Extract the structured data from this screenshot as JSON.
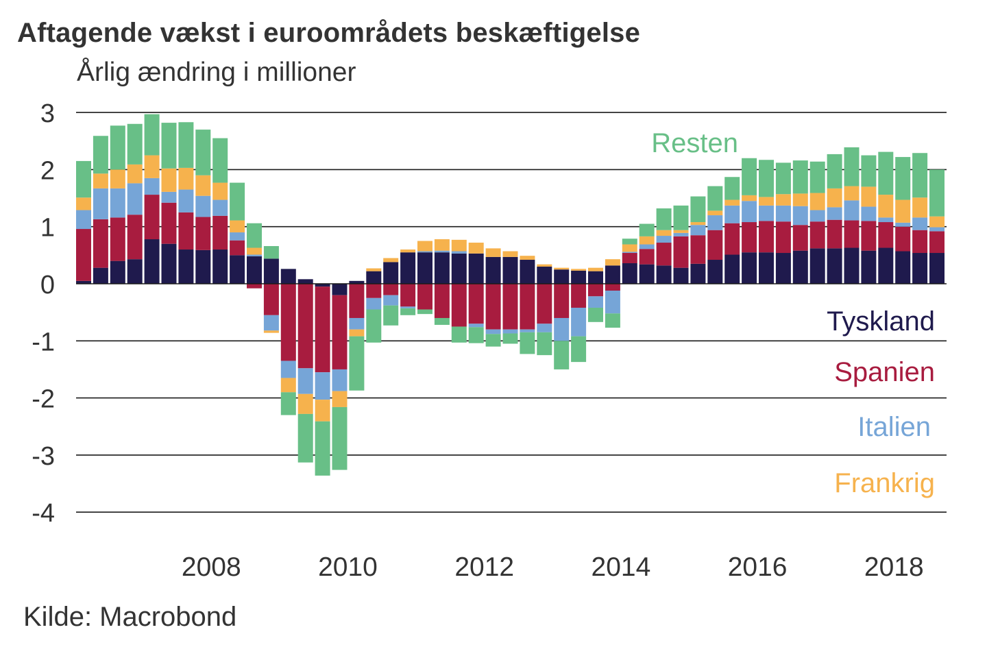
{
  "title": "Aftagende vækst i euroområdets beskæftigelse",
  "subtitle": "Årlig ændring i millioner",
  "source": "Kilde: Macrobond",
  "chart_data": {
    "type": "bar",
    "stacked": true,
    "title": "Aftagende vækst i euroområdets beskæftigelse",
    "ylabel": "Årlig ændring i millioner",
    "xlabel": "",
    "frequency": "quarterly",
    "ylim": [
      -4,
      3
    ],
    "yticks": [
      "3",
      "2",
      "1",
      "0",
      "-1",
      "-2",
      "-3",
      "-4"
    ],
    "ytick_values": [
      3,
      2,
      1,
      0,
      -1,
      -2,
      -3,
      -4
    ],
    "xticks": [
      "2008",
      "2010",
      "2012",
      "2014",
      "2016",
      "2018"
    ],
    "xtick_bar_index": [
      7.5,
      15.5,
      23.5,
      31.5,
      39.5,
      47.5
    ],
    "grid": true,
    "legend_placement": "right (inline labels)",
    "categories": [
      "2006Q2",
      "2006Q3",
      "2006Q4",
      "2007Q1",
      "2007Q2",
      "2007Q3",
      "2007Q4",
      "2008Q1",
      "2008Q2",
      "2008Q3",
      "2008Q4",
      "2009Q1",
      "2009Q2",
      "2009Q3",
      "2009Q4",
      "2010Q1",
      "2010Q2",
      "2010Q3",
      "2010Q4",
      "2011Q1",
      "2011Q2",
      "2011Q3",
      "2011Q4",
      "2012Q1",
      "2012Q2",
      "2012Q3",
      "2012Q4",
      "2013Q1",
      "2013Q2",
      "2013Q3",
      "2013Q4",
      "2014Q1",
      "2014Q2",
      "2014Q3",
      "2014Q4",
      "2015Q1",
      "2015Q2",
      "2015Q3",
      "2015Q4",
      "2016Q1",
      "2016Q2",
      "2016Q3",
      "2016Q4",
      "2017Q1",
      "2017Q2",
      "2017Q3",
      "2017Q4",
      "2018Q1",
      "2018Q2",
      "2018Q3",
      "2018Q4"
    ],
    "series": [
      {
        "name": "Tyskland",
        "color": "#1f1a4d",
        "values": [
          0.05,
          0.28,
          0.4,
          0.43,
          0.78,
          0.7,
          0.6,
          0.59,
          0.6,
          0.5,
          0.48,
          0.44,
          0.26,
          0.08,
          -0.05,
          -0.2,
          0.05,
          0.22,
          0.38,
          0.55,
          0.55,
          0.55,
          0.53,
          0.53,
          0.47,
          0.47,
          0.42,
          0.3,
          0.25,
          0.23,
          0.22,
          0.32,
          0.36,
          0.34,
          0.32,
          0.28,
          0.35,
          0.42,
          0.51,
          0.55,
          0.55,
          0.54,
          0.58,
          0.62,
          0.62,
          0.63,
          0.58,
          0.63,
          0.57,
          0.54,
          0.54
        ]
      },
      {
        "name": "Spanien",
        "color": "#a81c3f",
        "values": [
          0.91,
          0.85,
          0.76,
          0.78,
          0.78,
          0.72,
          0.65,
          0.58,
          0.59,
          0.26,
          -0.08,
          -0.55,
          -1.35,
          -1.48,
          -1.5,
          -1.3,
          -0.6,
          -0.25,
          -0.2,
          -0.4,
          -0.45,
          -0.6,
          -0.75,
          -0.7,
          -0.8,
          -0.8,
          -0.8,
          -0.7,
          -0.6,
          -0.42,
          -0.22,
          -0.12,
          0.18,
          0.27,
          0.4,
          0.55,
          0.5,
          0.52,
          0.55,
          0.53,
          0.55,
          0.55,
          0.45,
          0.47,
          0.5,
          0.48,
          0.52,
          0.45,
          0.43,
          0.4,
          0.38
        ]
      },
      {
        "name": "Italien",
        "color": "#76a5d7",
        "values": [
          0.33,
          0.54,
          0.51,
          0.55,
          0.29,
          0.19,
          0.4,
          0.37,
          0.28,
          0.14,
          0.03,
          -0.27,
          -0.3,
          -0.45,
          -0.48,
          -0.38,
          -0.2,
          -0.2,
          -0.18,
          -0.03,
          0.02,
          0.03,
          0.04,
          -0.06,
          -0.08,
          -0.07,
          -0.05,
          -0.15,
          -0.4,
          -0.5,
          -0.2,
          -0.4,
          0.02,
          0.08,
          0.12,
          0.06,
          0.18,
          0.26,
          0.31,
          0.37,
          0.27,
          0.28,
          0.33,
          0.2,
          0.22,
          0.35,
          0.25,
          0.08,
          0.07,
          0.22,
          0.07
        ]
      },
      {
        "name": "Frankrig",
        "color": "#f6b24d",
        "values": [
          0.22,
          0.26,
          0.33,
          0.33,
          0.4,
          0.41,
          0.38,
          0.36,
          0.3,
          0.21,
          0.12,
          -0.04,
          -0.25,
          -0.35,
          -0.38,
          -0.28,
          -0.12,
          0.05,
          0.07,
          0.05,
          0.18,
          0.2,
          0.2,
          0.19,
          0.15,
          0.1,
          0.07,
          0.04,
          0.03,
          0.03,
          0.06,
          0.11,
          0.13,
          0.14,
          0.1,
          0.05,
          0.05,
          0.08,
          0.1,
          0.1,
          0.15,
          0.2,
          0.22,
          0.3,
          0.33,
          0.25,
          0.35,
          0.4,
          0.4,
          0.35,
          0.19
        ]
      },
      {
        "name": "Resten",
        "color": "#68bf87",
        "values": [
          0.64,
          0.66,
          0.77,
          0.71,
          0.72,
          0.8,
          0.8,
          0.8,
          0.78,
          0.66,
          0.43,
          0.22,
          -0.4,
          -0.85,
          -0.95,
          -1.1,
          -0.95,
          -0.58,
          -0.35,
          -0.12,
          -0.08,
          -0.12,
          -0.28,
          -0.28,
          -0.22,
          -0.18,
          -0.38,
          -0.4,
          -0.5,
          -0.45,
          -0.25,
          -0.25,
          0.1,
          0.22,
          0.38,
          0.43,
          0.45,
          0.43,
          0.4,
          0.65,
          0.65,
          0.55,
          0.58,
          0.55,
          0.6,
          0.68,
          0.55,
          0.75,
          0.75,
          0.78,
          0.82
        ]
      }
    ],
    "legend": [
      {
        "name": "Resten",
        "color": "#68bf87"
      },
      {
        "name": "Tyskland",
        "color": "#1f1a4d"
      },
      {
        "name": "Spanien",
        "color": "#a81c3f"
      },
      {
        "name": "Italien",
        "color": "#76a5d7"
      },
      {
        "name": "Frankrig",
        "color": "#f6b24d"
      }
    ]
  }
}
